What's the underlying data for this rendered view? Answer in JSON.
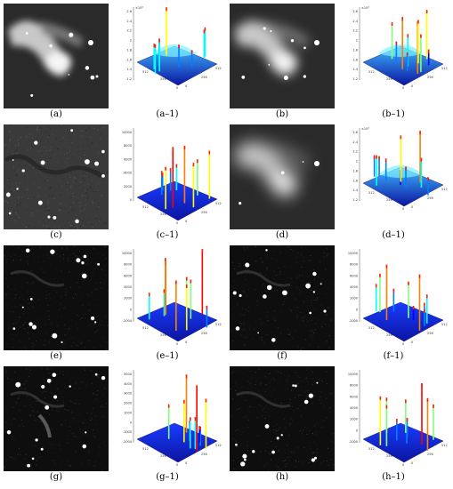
{
  "figure": {
    "panels": [
      {
        "image_label": "(a)",
        "plot_label": "(a–1)",
        "image_type": "galaxy-nebula",
        "plot_scale": "×10⁴",
        "plot_ticks": [
          "2.6",
          "2.4",
          "2.2",
          "2",
          "1.8",
          "1.6",
          "1.4",
          "1.2"
        ]
      },
      {
        "image_label": "(b)",
        "plot_label": "(b–1)",
        "image_type": "galaxy-nebula-smooth",
        "plot_scale": "×10⁴",
        "plot_ticks": [
          "2.6",
          "2.4",
          "2.2",
          "2",
          "1.8",
          "1.6",
          "1.4",
          "1.2"
        ]
      },
      {
        "image_label": "(c)",
        "plot_label": "(c–1)",
        "image_type": "textured-stars",
        "plot_scale": "",
        "plot_ticks": [
          "10000",
          "8000",
          "6000",
          "4000",
          "2000",
          "0"
        ]
      },
      {
        "image_label": "(d)",
        "plot_label": "(d–1)",
        "image_type": "galaxy-nebula-blur",
        "plot_scale": "×10⁴",
        "plot_ticks": [
          "2.6",
          "2.4",
          "2.2",
          "2",
          "1.8",
          "1.6",
          "1.4",
          "1.2"
        ]
      },
      {
        "image_label": "(e)",
        "plot_label": "(e–1)",
        "image_type": "dark-stars",
        "plot_scale": "",
        "plot_ticks": [
          "10000",
          "8000",
          "6000",
          "4000",
          "2000",
          "0",
          "-2000"
        ]
      },
      {
        "image_label": "(f)",
        "plot_label": "(f–1)",
        "image_type": "dark-stars",
        "plot_scale": "",
        "plot_ticks": [
          "10000",
          "8000",
          "6000",
          "4000",
          "2000",
          "0",
          "-2000"
        ]
      },
      {
        "image_label": "(g)",
        "plot_label": "(g–1)",
        "image_type": "dark-stars-streak",
        "plot_scale": "",
        "plot_ticks": [
          "5000",
          "4000",
          "3000",
          "2000",
          "1000",
          "0",
          "-1000",
          "-2000"
        ]
      },
      {
        "image_label": "(h)",
        "plot_label": "(h–1)",
        "image_type": "dark-stars",
        "plot_scale": "",
        "plot_ticks": [
          "10000",
          "8000",
          "6000",
          "4000",
          "2000",
          "0",
          "-2000"
        ]
      }
    ],
    "axis_ticks": {
      "x": [
        "0",
        "256",
        "512"
      ],
      "y": [
        "0",
        "256",
        "512"
      ]
    },
    "colormap": [
      "#00007f",
      "#0000ff",
      "#007fff",
      "#00ffff",
      "#7fff7f",
      "#ffff00",
      "#ff7f00",
      "#ff0000"
    ]
  }
}
